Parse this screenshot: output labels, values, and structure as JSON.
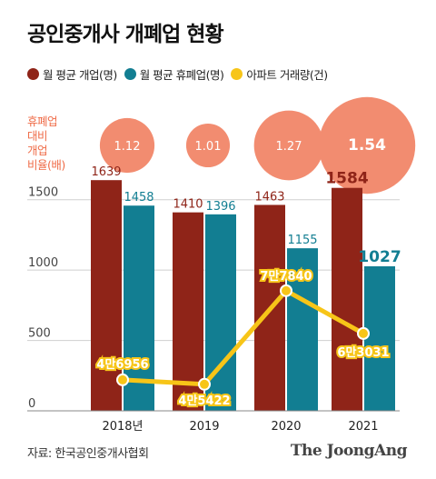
{
  "title": "공인중개사 개폐업 현황",
  "legend": {
    "open": "월 평균 개업(명)",
    "close": "월 평균 휴폐업(명)",
    "trade": "아파트 거래량(건)"
  },
  "ratio_label": [
    "휴폐업",
    "대비",
    "개업",
    "비율(배)"
  ],
  "source": "자료: 한국공인중개사협회",
  "brand": "The JoongAng",
  "colors": {
    "open": "#8f2418",
    "close": "#127e92",
    "trade": "#f7c518",
    "ratio_circle": "#f28c70",
    "ratio_text": "#ef6b47"
  },
  "chart_data": {
    "type": "bar",
    "categories": [
      "2018년",
      "2019",
      "2020",
      "2021"
    ],
    "series": [
      {
        "name": "월 평균 개업(명)",
        "values": [
          1639,
          1410,
          1463,
          1584
        ],
        "labels": [
          "1639",
          "1410",
          "1463",
          "1584"
        ]
      },
      {
        "name": "월 평균 휴폐업(명)",
        "values": [
          1458,
          1396,
          1155,
          1027
        ],
        "labels": [
          "1458",
          "1396",
          "1155",
          "1027"
        ]
      }
    ],
    "line": {
      "name": "아파트 거래량(건)",
      "values": [
        46956,
        45422,
        77840,
        63031
      ],
      "labels": [
        "4만6956",
        "4만5422",
        "7만7840",
        "6만3031"
      ]
    },
    "ratios": {
      "values": [
        1.12,
        1.01,
        1.27,
        1.54
      ],
      "labels": [
        "1.12",
        "1.01",
        "1.27",
        "1.54"
      ]
    },
    "y_ticks": [
      0,
      500,
      1000,
      1500
    ],
    "ylim": [
      0,
      1750
    ]
  }
}
